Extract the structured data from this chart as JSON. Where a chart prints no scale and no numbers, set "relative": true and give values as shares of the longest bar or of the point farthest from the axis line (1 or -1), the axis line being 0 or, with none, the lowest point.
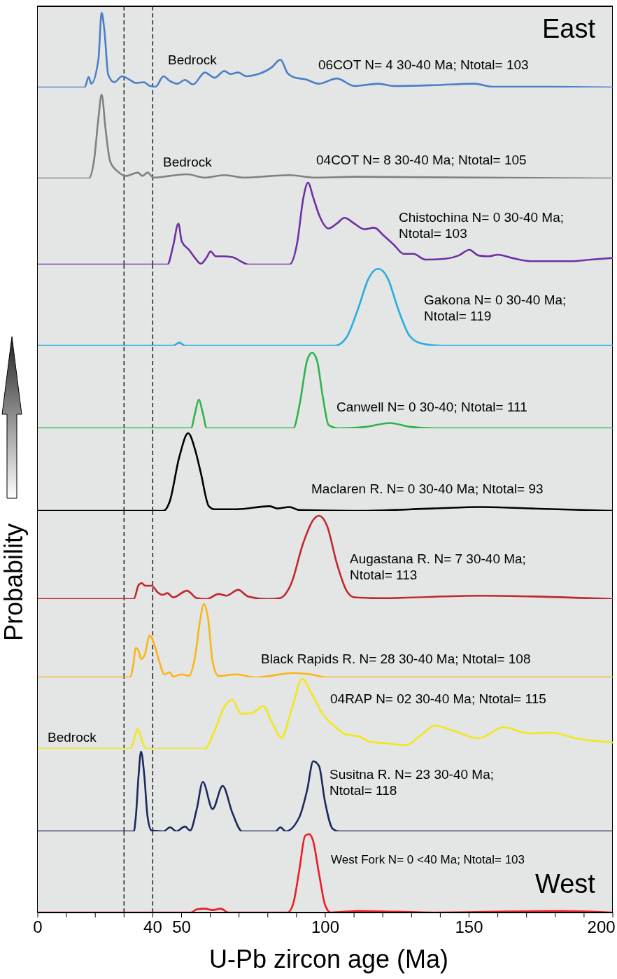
{
  "chart_data": [
    {
      "type": "line",
      "relative": true,
      "xlim": [
        0,
        200
      ],
      "tick_labels": false,
      "annotations": [
        "East",
        "Bedrock"
      ],
      "ref_lines": [
        {
          "axis": "x",
          "value": 30,
          "line_style": "dashed",
          "color": "#000000"
        },
        {
          "axis": "x",
          "value": 40,
          "line_style": "dashed",
          "color": "#000000"
        }
      ],
      "series": [
        {
          "name": "06COT N= 4 30-40 Ma; Ntotal= 103",
          "color": "#4a7fc8",
          "x": [
            0,
            16.3,
            17.7,
            18.6,
            21.1,
            22.2,
            23.2,
            24.5,
            26.6,
            29.3,
            32.1,
            34.1,
            36.9,
            39,
            41,
            43.7,
            45.8,
            48.5,
            51.2,
            54,
            58.1,
            61.5,
            64.9,
            67,
            69.7,
            72.5,
            75.9,
            81.4,
            84.4,
            86.9,
            89.6,
            93,
            97.8,
            104,
            110.1,
            118.4,
            123.9,
            137.5,
            151.9,
            158.1,
            178.6,
            200
          ],
          "values": [
            0,
            0,
            0.14,
            0.05,
            0.38,
            1,
            0.75,
            0.17,
            0.07,
            0.15,
            0.1,
            0.06,
            0.07,
            0.02,
            0.01,
            0.15,
            0.09,
            0.05,
            0.1,
            0.04,
            0.2,
            0.13,
            0.22,
            0.18,
            0.2,
            0.15,
            0.17,
            0.27,
            0.37,
            0.19,
            0.13,
            0.11,
            0.05,
            0.12,
            0.02,
            0.05,
            0.02,
            0.03,
            0.05,
            0.01,
            0.01,
            0
          ]
        }
      ]
    },
    {
      "type": "line",
      "relative": true,
      "xlim": [
        0,
        200
      ],
      "tick_labels": false,
      "annotations": [
        "Bedrock"
      ],
      "ref_lines": [
        {
          "axis": "x",
          "value": 30,
          "line_style": "dashed",
          "color": "#000000"
        },
        {
          "axis": "x",
          "value": 40,
          "line_style": "dashed",
          "color": "#000000"
        }
      ],
      "series": [
        {
          "name": "04COT N= 8 30-40 Ma; Ntotal= 105",
          "color": "#808080",
          "x": [
            0,
            17.7,
            19.7,
            21.1,
            22.2,
            23.6,
            25.2,
            27.9,
            30.7,
            34.8,
            36.4,
            38.2,
            40.3,
            45.8,
            52,
            58.1,
            64.9,
            71.8,
            81.4,
            87.5,
            96.4,
            110.1,
            200
          ],
          "values": [
            0,
            0,
            0.25,
            0.72,
            1,
            0.58,
            0.2,
            0.08,
            0.03,
            0.07,
            0.03,
            0.07,
            0.01,
            0.03,
            0.05,
            0.01,
            0.04,
            0.01,
            0.03,
            0.04,
            0.01,
            0.02,
            0
          ]
        }
      ]
    },
    {
      "type": "line",
      "relative": true,
      "xlim": [
        0,
        200
      ],
      "tick_labels": false,
      "ref_lines": [
        {
          "axis": "x",
          "value": 30,
          "line_style": "dashed",
          "color": "#000000"
        },
        {
          "axis": "x",
          "value": 40,
          "line_style": "dashed",
          "color": "#000000"
        }
      ],
      "series": [
        {
          "name": "Chistochina N= 0 30-40 Ma; Ntotal= 103",
          "color": "#7030a0",
          "x": [
            0,
            45.1,
            47.1,
            48.9,
            50.1,
            52.6,
            54.7,
            56.7,
            58.8,
            60.1,
            61.9,
            64.3,
            67.7,
            71.1,
            73.2,
            87.5,
            90.3,
            92.3,
            94,
            95.8,
            97.8,
            101.2,
            104,
            106.7,
            110.1,
            113.6,
            117,
            120.4,
            123.9,
            127.3,
            130.7,
            134.8,
            141.7,
            146.4,
            150.1,
            153.3,
            156.7,
            160.1,
            164.9,
            171.8,
            185.5,
            192.3,
            199.9
          ],
          "values": [
            0,
            0,
            0.23,
            0.5,
            0.28,
            0.18,
            0.08,
            0.01,
            0.09,
            0.16,
            0.1,
            0.1,
            0.09,
            0.03,
            0,
            0,
            0.28,
            0.8,
            1,
            0.82,
            0.61,
            0.44,
            0.5,
            0.57,
            0.5,
            0.43,
            0.45,
            0.35,
            0.24,
            0.13,
            0.13,
            0.06,
            0.07,
            0.11,
            0.18,
            0.11,
            0.1,
            0.12,
            0.08,
            0.04,
            0.04,
            0.06,
            0.08
          ]
        }
      ]
    },
    {
      "type": "line",
      "relative": true,
      "xlim": [
        0,
        200
      ],
      "tick_labels": false,
      "ref_lines": [
        {
          "axis": "x",
          "value": 30,
          "line_style": "dashed",
          "color": "#000000"
        },
        {
          "axis": "x",
          "value": 40,
          "line_style": "dashed",
          "color": "#000000"
        }
      ],
      "series": [
        {
          "name": "Gakona N= 0 30-40 Ma; Ntotal= 119",
          "color": "#29abe2",
          "x": [
            0,
            47.1,
            49.2,
            51.2,
            103.3,
            107.4,
            111.5,
            115,
            118.4,
            121.8,
            125.2,
            129.3,
            133.4,
            140.3,
            200
          ],
          "values": [
            0,
            0,
            0.04,
            0,
            0,
            0.11,
            0.49,
            0.87,
            1,
            0.87,
            0.49,
            0.13,
            0.03,
            0,
            0
          ]
        }
      ]
    },
    {
      "type": "line",
      "relative": true,
      "xlim": [
        0,
        200
      ],
      "tick_labels": false,
      "ref_lines": [
        {
          "axis": "x",
          "value": 30,
          "line_style": "dashed",
          "color": "#000000"
        },
        {
          "axis": "x",
          "value": 40,
          "line_style": "dashed",
          "color": "#000000"
        }
      ],
      "series": [
        {
          "name": "Canwell N= 0 30-40; Ntotal= 111",
          "color": "#2db34a",
          "x": [
            0,
            53.3,
            54.7,
            56,
            57.4,
            58.8,
            88.9,
            91,
            93.7,
            95.4,
            97.1,
            99.2,
            101.2,
            104.7,
            114.3,
            122.5,
            129.3,
            137.5,
            200
          ],
          "values": [
            0,
            0,
            0.2,
            0.38,
            0.2,
            0,
            0,
            0.3,
            0.9,
            1,
            0.9,
            0.4,
            0.04,
            0,
            0.02,
            0.07,
            0.02,
            0,
            0
          ]
        }
      ]
    },
    {
      "type": "line",
      "relative": true,
      "xlim": [
        0,
        200
      ],
      "tick_labels": false,
      "ref_lines": [
        {
          "axis": "x",
          "value": 30,
          "line_style": "dashed",
          "color": "#000000"
        },
        {
          "axis": "x",
          "value": 40,
          "line_style": "dashed",
          "color": "#000000"
        }
      ],
      "series": [
        {
          "name": "Maclaren R. N= 0 30-40 Ma; Ntotal= 93",
          "color": "#000000",
          "x": [
            0,
            43.7,
            45.8,
            49.2,
            52.3,
            54.7,
            56.7,
            59.5,
            61.5,
            69,
            80.7,
            83.4,
            87.5,
            90.9,
            110.1,
            137.5,
            154,
            171.8,
            200
          ],
          "values": [
            0,
            0,
            0.11,
            0.69,
            1,
            0.79,
            0.49,
            0.06,
            0.02,
            0.02,
            0.06,
            0.03,
            0.05,
            0.01,
            0,
            0.03,
            0.05,
            0.03,
            0
          ]
        }
      ]
    },
    {
      "type": "line",
      "relative": true,
      "xlim": [
        0,
        200
      ],
      "tick_labels": false,
      "ref_lines": [
        {
          "axis": "x",
          "value": 30,
          "line_style": "dashed",
          "color": "#000000"
        },
        {
          "axis": "x",
          "value": 40,
          "line_style": "dashed",
          "color": "#000000"
        }
      ],
      "series": [
        {
          "name": "Augastana R. N= 7 30-40 Ma; Ntotal= 113",
          "color": "#c1272d",
          "x": [
            0,
            33.4,
            35.1,
            36.2,
            37.3,
            39.6,
            41.7,
            43.3,
            45.1,
            47.1,
            51.9,
            55.3,
            58.8,
            62.9,
            65.6,
            69.7,
            73.2,
            80,
            84.1,
            88.2,
            92.3,
            95.8,
            97.8,
            100.6,
            104,
            107.4,
            110.1,
            119.1,
            154,
            200
          ],
          "values": [
            0,
            0,
            0.17,
            0.19,
            0.16,
            0.16,
            0.08,
            0.05,
            0.07,
            0.02,
            0.1,
            0.01,
            0,
            0.06,
            0.04,
            0.11,
            0.03,
            0,
            0.01,
            0.19,
            0.67,
            0.95,
            1,
            0.88,
            0.43,
            0.1,
            0.02,
            0.01,
            0.04,
            0
          ]
        }
      ]
    },
    {
      "type": "line",
      "relative": true,
      "xlim": [
        0,
        200
      ],
      "tick_labels": false,
      "ref_lines": [
        {
          "axis": "x",
          "value": 30,
          "line_style": "dashed",
          "color": "#000000"
        },
        {
          "axis": "x",
          "value": 40,
          "line_style": "dashed",
          "color": "#000000"
        }
      ],
      "series": [
        {
          "name": "Black Rapids R. N= 28 30-40 Ma; Ntotal= 108",
          "color": "#fbb515",
          "x": [
            0,
            32.1,
            33.2,
            34.1,
            35.1,
            35.9,
            37.3,
            38.9,
            40.6,
            42.3,
            44.1,
            45.8,
            47.1,
            49.9,
            52.6,
            54.7,
            56.4,
            57.8,
            59.2,
            60.8,
            62.9,
            69,
            75.9,
            88.9,
            95.1,
            100.6,
            200
          ],
          "values": [
            0,
            0,
            0.17,
            0.4,
            0.36,
            0.25,
            0.32,
            0.57,
            0.44,
            0.21,
            0.04,
            0.07,
            0.01,
            0.04,
            0.02,
            0.28,
            0.76,
            1,
            0.81,
            0.22,
            0.02,
            0.04,
            0,
            0.06,
            0.04,
            0,
            0
          ]
        }
      ]
    },
    {
      "type": "line",
      "relative": true,
      "xlim": [
        0,
        200
      ],
      "tick_labels": false,
      "annotations": [
        "Bedrock"
      ],
      "ref_lines": [
        {
          "axis": "x",
          "value": 30,
          "line_style": "dashed",
          "color": "#000000"
        },
        {
          "axis": "x",
          "value": 40,
          "line_style": "dashed",
          "color": "#000000"
        }
      ],
      "series": [
        {
          "name": "04RAP N= 02 30-40 Ma; Ntotal= 115",
          "color": "#f2e818",
          "x": [
            0,
            32.1,
            33.4,
            34.8,
            36.2,
            37.8,
            58.1,
            61.5,
            64.9,
            67.7,
            70.7,
            74.5,
            78.4,
            81.4,
            84.8,
            88.2,
            92,
            95.1,
            99.2,
            103.3,
            107.4,
            111.5,
            115.6,
            121.1,
            128,
            133.4,
            138.2,
            144.4,
            153.3,
            162.2,
            170.4,
            178.6,
            188.2,
            199.9
          ],
          "values": [
            0,
            0,
            0.12,
            0.29,
            0.12,
            0,
            0,
            0.26,
            0.6,
            0.7,
            0.5,
            0.51,
            0.61,
            0.38,
            0.16,
            0.55,
            1,
            0.8,
            0.49,
            0.32,
            0.2,
            0.18,
            0.1,
            0.08,
            0.05,
            0.2,
            0.33,
            0.26,
            0.15,
            0.31,
            0.22,
            0.23,
            0.14,
            0.09
          ]
        }
      ]
    },
    {
      "type": "line",
      "relative": true,
      "xlim": [
        0,
        200
      ],
      "tick_labels": false,
      "ref_lines": [
        {
          "axis": "x",
          "value": 30,
          "line_style": "dashed",
          "color": "#000000"
        },
        {
          "axis": "x",
          "value": 40,
          "line_style": "dashed",
          "color": "#000000"
        }
      ],
      "series": [
        {
          "name": "Susitna R. N= 23 30-40 Ma; Ntotal= 118",
          "color": "#1b2a5e",
          "x": [
            0,
            33.4,
            34.1,
            35.1,
            35.9,
            37,
            38.2,
            39.6,
            43.7,
            46,
            48.2,
            51.2,
            53,
            55.3,
            57.4,
            60.8,
            64.3,
            67.7,
            71.1,
            82.7,
            84.4,
            86.2,
            91,
            93.7,
            95.8,
            97.8,
            99.9,
            102.6,
            104.7,
            200
          ],
          "values": [
            0,
            0,
            0.18,
            0.72,
            1,
            0.72,
            0.18,
            0.01,
            0,
            0.05,
            0,
            0.06,
            0.01,
            0.28,
            0.62,
            0.28,
            0.57,
            0.23,
            0,
            0,
            0.05,
            0,
            0.18,
            0.52,
            0.88,
            0.82,
            0.37,
            0.03,
            0,
            0
          ]
        }
      ]
    },
    {
      "type": "line",
      "relative": true,
      "xlim": [
        0,
        200
      ],
      "tick_labels": "x",
      "xlabel": "U-Pb zircon age (Ma)",
      "ylabel": "Probability",
      "annotations": [
        "West"
      ],
      "xticks": [
        0,
        {
          "value": 10,
          "label": null
        },
        {
          "value": 20,
          "label": null
        },
        {
          "value": 30,
          "label": null
        },
        40,
        50,
        {
          "value": 60,
          "label": null
        },
        {
          "value": 70,
          "label": null
        },
        {
          "value": 80,
          "label": null
        },
        {
          "value": 90,
          "label": null
        },
        100,
        {
          "value": 110,
          "label": null
        },
        {
          "value": 120,
          "label": null
        },
        {
          "value": 130,
          "label": null
        },
        {
          "value": 140,
          "label": null
        },
        150,
        {
          "value": 160,
          "label": null
        },
        {
          "value": 170,
          "label": null
        },
        {
          "value": 180,
          "label": null
        },
        {
          "value": 190,
          "label": null
        },
        200
      ],
      "ref_lines": [
        {
          "axis": "x",
          "value": 30,
          "line_style": "dashed",
          "color": "#000000"
        },
        {
          "axis": "x",
          "value": 40,
          "line_style": "dashed",
          "color": "#000000"
        }
      ],
      "series": [
        {
          "name": "West Fork N= 0 <40 Ma; Ntotal= 103",
          "color": "#ed1c24",
          "x": [
            0,
            53.3,
            55.3,
            58.1,
            60.8,
            63.6,
            66.3,
            86.9,
            88.9,
            91,
            93,
            94.4,
            95.8,
            97.8,
            99.9,
            101.9,
            111.5,
            125.2,
            137.5,
            181.4,
            200
          ],
          "values": [
            0,
            0,
            0.04,
            0.05,
            0.03,
            0.05,
            0,
            0,
            0.12,
            0.55,
            0.98,
            1,
            0.91,
            0.5,
            0.1,
            0,
            0.02,
            0.01,
            0,
            0.02,
            0
          ]
        }
      ]
    }
  ]
}
